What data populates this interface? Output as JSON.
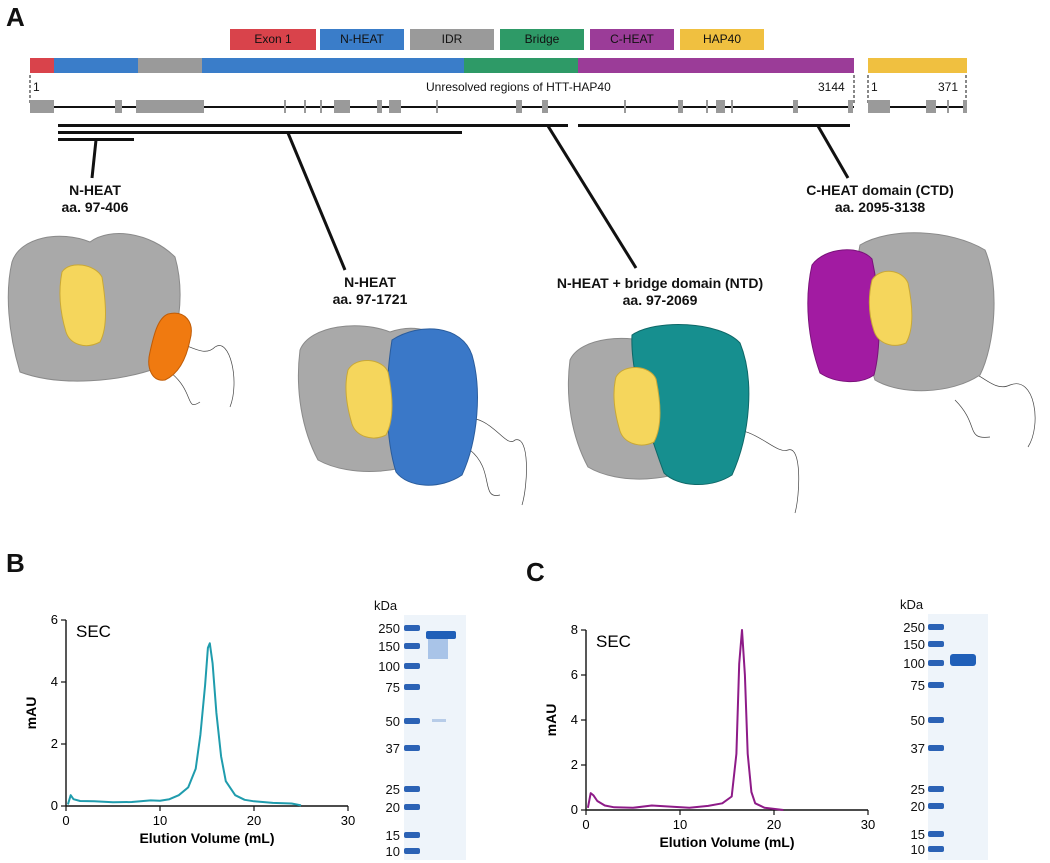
{
  "panel_a": {
    "letter": "A",
    "legend": [
      "Exon 1",
      "N-HEAT",
      "IDR",
      "Bridge",
      "C-HEAT",
      "HAP40"
    ],
    "colors": {
      "exon1": "#d9434b",
      "nheat": "#3a7dc9",
      "idr": "#9a9a9a",
      "bridge": "#2e9a67",
      "cheat": "#9b3c98",
      "hap40": "#f0c040",
      "nheat_surface": "#3a78c8",
      "ntd_surface": "#168f8f",
      "cheat_surface": "#a21ba2",
      "hap40_surface": "#f5d65c",
      "small_domain": "#f07a10"
    },
    "unresolved_label": "Unresolved regions of HTT-HAP40",
    "htt_start": "1",
    "htt_end": "3144",
    "hap40_start": "1",
    "hap40_end": "371",
    "constructs": [
      {
        "name": "N-HEAT",
        "range": "aa. 97-406"
      },
      {
        "name": "N-HEAT",
        "range": "aa. 97-1721"
      },
      {
        "name": "N-HEAT + bridge domain (NTD)",
        "range": "aa. 97-2069"
      },
      {
        "name": "C-HEAT domain (CTD)",
        "range": "aa. 2095-3138"
      }
    ]
  },
  "panel_b": {
    "letter": "B",
    "sec_label": "SEC",
    "kda_label": "kDa",
    "markers": [
      "250",
      "150",
      "100",
      "75",
      "50",
      "37",
      "25",
      "20",
      "15",
      "10"
    ]
  },
  "panel_c": {
    "letter": "C",
    "sec_label": "SEC",
    "kda_label": "kDa",
    "markers": [
      "250",
      "150",
      "100",
      "75",
      "50",
      "37",
      "25",
      "20",
      "15",
      "10"
    ]
  },
  "chart_data": [
    {
      "type": "line",
      "title": "SEC",
      "xlabel": "Elution Volume (mL)",
      "ylabel": "mAU",
      "xlim": [
        0,
        30
      ],
      "ylim": [
        0,
        6
      ],
      "xticks": [
        0,
        10,
        20,
        30
      ],
      "yticks": [
        0,
        2,
        4,
        6
      ],
      "color": "#1f9cad",
      "x": [
        0.2,
        0.5,
        0.8,
        1.5,
        3,
        5,
        7,
        9,
        10,
        11,
        12,
        13,
        13.8,
        14.3,
        14.8,
        15.1,
        15.3,
        15.6,
        16,
        16.5,
        17,
        18,
        19,
        20,
        22,
        24,
        25
      ],
      "y": [
        0.05,
        0.35,
        0.22,
        0.16,
        0.15,
        0.12,
        0.13,
        0.18,
        0.17,
        0.22,
        0.35,
        0.6,
        1.2,
        2.3,
        3.9,
        5.1,
        5.25,
        4.6,
        3.0,
        1.6,
        0.8,
        0.35,
        0.2,
        0.15,
        0.1,
        0.08,
        0.02
      ]
    },
    {
      "type": "line",
      "title": "SEC",
      "xlabel": "Elution Volume (mL)",
      "ylabel": "mAU",
      "xlim": [
        0,
        30
      ],
      "ylim": [
        0,
        8
      ],
      "xticks": [
        0,
        10,
        20,
        30
      ],
      "yticks": [
        0,
        2,
        4,
        6,
        8
      ],
      "color": "#8e1b88",
      "x": [
        0.2,
        0.5,
        0.8,
        1.2,
        2,
        3,
        5,
        7,
        9,
        11,
        13,
        14.5,
        15.5,
        16,
        16.3,
        16.6,
        16.9,
        17.2,
        17.6,
        18,
        19,
        20,
        21
      ],
      "y": [
        0.1,
        0.75,
        0.65,
        0.4,
        0.2,
        0.12,
        0.1,
        0.2,
        0.15,
        0.1,
        0.18,
        0.3,
        0.6,
        2.5,
        6.5,
        8.0,
        6.0,
        2.5,
        0.8,
        0.3,
        0.1,
        0.05,
        0.0
      ]
    }
  ]
}
